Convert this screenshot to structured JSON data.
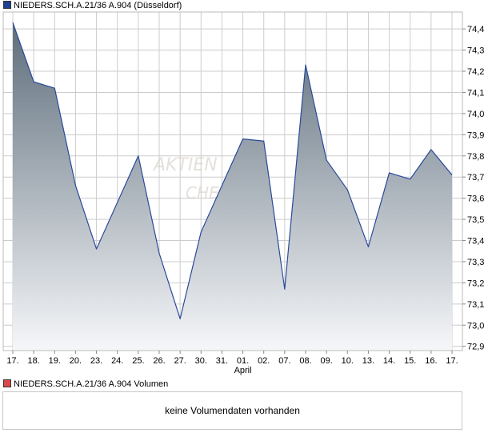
{
  "legend": {
    "price_label": "NIEDERS.SCH.A.21/36 A.904 (Düsseldorf)",
    "price_color": "#1f3f8f",
    "volume_label": "NIEDERS.SCH.A.21/36 A.904 Volumen",
    "volume_color": "#d94a4a"
  },
  "volume_panel": {
    "message": "keine Volumendaten vorhanden"
  },
  "watermark": {
    "line1": "AKTIEN",
    "line2": "CHECK"
  },
  "chart_data": {
    "type": "area",
    "x": [
      "17.",
      "18.",
      "19.",
      "20.",
      "23.",
      "24.",
      "25.",
      "26.",
      "27.",
      "30.",
      "31.",
      "01.",
      "02.",
      "07.",
      "08.",
      "09.",
      "10.",
      "13.",
      "14.",
      "15.",
      "16.",
      "17."
    ],
    "month_label": "April",
    "month_label_at_index": 11,
    "series": [
      {
        "values": [
          74.43,
          74.15,
          74.12,
          73.66,
          73.36,
          73.58,
          73.8,
          73.34,
          73.03,
          73.44,
          73.66,
          73.88,
          73.87,
          73.17,
          74.23,
          73.78,
          73.64,
          73.37,
          73.72,
          73.69,
          73.83,
          73.71
        ],
        "line_color": "#2a4a9a",
        "fill_top_color": "#5e6e7c",
        "fill_bottom_color": "#f6f7f9"
      }
    ],
    "y_ticks": [
      "74,4",
      "74,3",
      "74,2",
      "74,1",
      "74,0",
      "73,9",
      "73,8",
      "73,7",
      "73,6",
      "73,5",
      "73,4",
      "73,3",
      "73,2",
      "73,1",
      "73,0",
      "72,9"
    ],
    "y_tick_values": [
      74.4,
      74.3,
      74.2,
      74.1,
      74.0,
      73.9,
      73.8,
      73.7,
      73.6,
      73.5,
      73.4,
      73.3,
      73.2,
      73.1,
      73.0,
      72.9
    ],
    "ylim": [
      72.88,
      74.48
    ],
    "grid": "both",
    "grid_color": "#cccccc",
    "xlabel": "",
    "ylabel": "",
    "title": ""
  }
}
